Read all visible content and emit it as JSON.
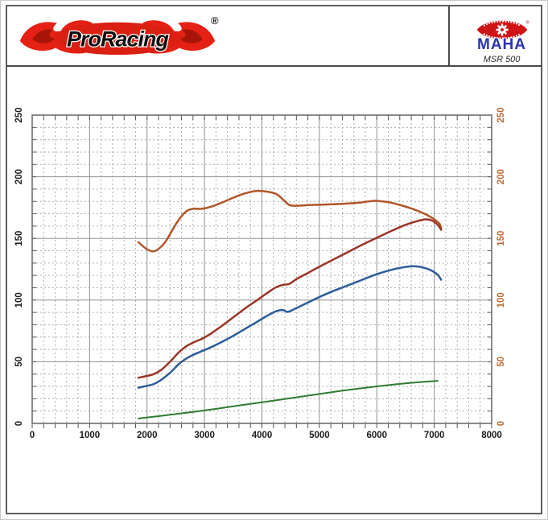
{
  "header": {
    "proracing_text": "ProRacing",
    "registered_mark": "®",
    "maha_text": "MAHA",
    "maha_model": "MSR 500"
  },
  "colors": {
    "flame_red": "#e42114",
    "flame_dark_red": "#a81408",
    "logo_text_black": "#0d0d0d",
    "maha_red": "#cf1416",
    "maha_blue": "#2b34ae",
    "frame_gray": "#5f5f5f"
  },
  "chart_data": {
    "type": "line",
    "title": "",
    "xlabel": "",
    "ylabel": "",
    "xlim": [
      0,
      8000
    ],
    "ylim": [
      0,
      250
    ],
    "x_major_step": 1000,
    "x_minor_step": 200,
    "y_major_step": 50,
    "y_minor_step": 10,
    "grid": "major solid, minor dashed",
    "legend": "none",
    "x_tick_labels": [
      "0",
      "1000",
      "2000",
      "3000",
      "4000",
      "5000",
      "6000",
      "7000",
      "8000"
    ],
    "y_tick_labels_left": [
      "0",
      "50",
      "100",
      "150",
      "200",
      "250"
    ],
    "y_tick_labels_right": [
      "0",
      "50",
      "100",
      "150",
      "200",
      "250"
    ],
    "axis_colors": {
      "bottom": "#1c1c1c",
      "left": "#1c1c1c",
      "right": "#bd6a33"
    },
    "grid_colors": {
      "major": "#8f8f8f",
      "minor": "#aeaeae",
      "border": "#666666",
      "tick": "#555555"
    },
    "series": [
      {
        "name": "curve-orange",
        "color": "#b05628",
        "width": 2.5,
        "points": [
          [
            1850,
            147
          ],
          [
            1975,
            142
          ],
          [
            2100,
            139.5
          ],
          [
            2200,
            141.5
          ],
          [
            2330,
            148
          ],
          [
            2480,
            160
          ],
          [
            2600,
            168
          ],
          [
            2700,
            172.5
          ],
          [
            2800,
            174
          ],
          [
            2950,
            174
          ],
          [
            3100,
            175.5
          ],
          [
            3300,
            179
          ],
          [
            3500,
            183
          ],
          [
            3700,
            186.5
          ],
          [
            3900,
            188.5
          ],
          [
            4080,
            188
          ],
          [
            4250,
            186
          ],
          [
            4380,
            181
          ],
          [
            4480,
            177
          ],
          [
            4600,
            176.5
          ],
          [
            4800,
            177
          ],
          [
            5100,
            177.5
          ],
          [
            5400,
            178
          ],
          [
            5700,
            179
          ],
          [
            5950,
            180.5
          ],
          [
            6100,
            180
          ],
          [
            6250,
            179
          ],
          [
            6450,
            176.5
          ],
          [
            6650,
            173.5
          ],
          [
            6850,
            169.5
          ],
          [
            7000,
            165.5
          ],
          [
            7090,
            162
          ],
          [
            7120,
            158.5
          ]
        ]
      },
      {
        "name": "curve-dark-red",
        "color": "#993526",
        "width": 2.5,
        "points": [
          [
            1850,
            37
          ],
          [
            2000,
            38.5
          ],
          [
            2120,
            40
          ],
          [
            2250,
            43.5
          ],
          [
            2400,
            50
          ],
          [
            2550,
            57.5
          ],
          [
            2680,
            62.5
          ],
          [
            2800,
            65.5
          ],
          [
            2950,
            68.5
          ],
          [
            3100,
            72.5
          ],
          [
            3300,
            79
          ],
          [
            3500,
            86
          ],
          [
            3700,
            93
          ],
          [
            3900,
            99.5
          ],
          [
            4100,
            106
          ],
          [
            4250,
            110.5
          ],
          [
            4380,
            112.5
          ],
          [
            4470,
            113
          ],
          [
            4600,
            117
          ],
          [
            4800,
            122
          ],
          [
            5000,
            127
          ],
          [
            5250,
            133
          ],
          [
            5500,
            139
          ],
          [
            5750,
            145
          ],
          [
            6000,
            150.5
          ],
          [
            6250,
            156
          ],
          [
            6500,
            161
          ],
          [
            6700,
            164
          ],
          [
            6850,
            165.5
          ],
          [
            6960,
            164.5
          ],
          [
            7060,
            161
          ],
          [
            7120,
            157
          ]
        ]
      },
      {
        "name": "curve-blue",
        "color": "#2d5c99",
        "width": 2.5,
        "points": [
          [
            1850,
            29
          ],
          [
            2000,
            30.5
          ],
          [
            2120,
            32
          ],
          [
            2250,
            35.5
          ],
          [
            2400,
            41
          ],
          [
            2550,
            48
          ],
          [
            2680,
            52.5
          ],
          [
            2800,
            55.5
          ],
          [
            2950,
            58.5
          ],
          [
            3100,
            61.5
          ],
          [
            3300,
            66
          ],
          [
            3500,
            71
          ],
          [
            3700,
            76.5
          ],
          [
            3900,
            82
          ],
          [
            4100,
            87.5
          ],
          [
            4250,
            91
          ],
          [
            4360,
            92
          ],
          [
            4450,
            90.5
          ],
          [
            4600,
            93.5
          ],
          [
            4800,
            98
          ],
          [
            5000,
            102.5
          ],
          [
            5250,
            107.5
          ],
          [
            5500,
            112
          ],
          [
            5750,
            116.5
          ],
          [
            6000,
            121
          ],
          [
            6250,
            124.5
          ],
          [
            6450,
            126.5
          ],
          [
            6650,
            127.5
          ],
          [
            6800,
            126.5
          ],
          [
            6950,
            124
          ],
          [
            7060,
            120.5
          ],
          [
            7120,
            116.5
          ]
        ]
      },
      {
        "name": "curve-green",
        "color": "#2f7b34",
        "width": 2,
        "points": [
          [
            1850,
            4
          ],
          [
            2400,
            7
          ],
          [
            3000,
            10.5
          ],
          [
            3600,
            14.5
          ],
          [
            4200,
            18.5
          ],
          [
            4800,
            22.5
          ],
          [
            5400,
            26.5
          ],
          [
            6000,
            30
          ],
          [
            6500,
            32.5
          ],
          [
            7060,
            34.5
          ]
        ]
      }
    ]
  }
}
